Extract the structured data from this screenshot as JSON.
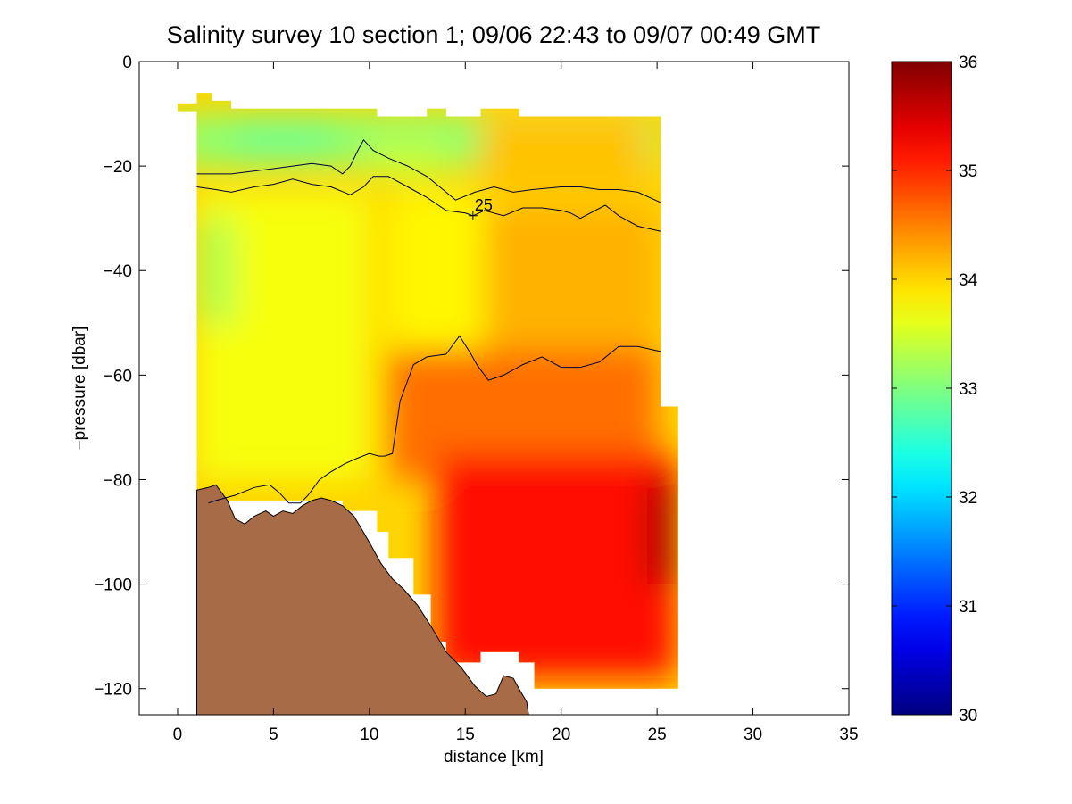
{
  "chart_data": {
    "type": "heatmap",
    "title": "Salinity survey 10 section 1; 09/06 22:43 to 09/07 00:49 GMT",
    "xlabel": "distance [km]",
    "ylabel": "−pressure [dbar]",
    "xlim": [
      -2,
      35
    ],
    "ylim": [
      -125,
      0
    ],
    "xticks": [
      0,
      5,
      10,
      15,
      20,
      25,
      30,
      35
    ],
    "yticks": [
      0,
      -20,
      -40,
      -60,
      -80,
      -100,
      -120
    ],
    "xtick_labels": [
      "0",
      "5",
      "10",
      "15",
      "20",
      "25",
      "30",
      "35"
    ],
    "ytick_labels": [
      "0",
      "−20",
      "−40",
      "−60",
      "−80",
      "−100",
      "−120"
    ],
    "colorbar": {
      "range": [
        30,
        36
      ],
      "ticks": [
        30,
        31,
        32,
        33,
        34,
        35,
        36
      ],
      "tick_labels": [
        "30",
        "31",
        "32",
        "33",
        "34",
        "35",
        "36"
      ],
      "colormap": "jet"
    },
    "grid": false,
    "bottom_color": "#a86b47",
    "data_outline": [
      [
        0,
        -8
      ],
      [
        1,
        -8
      ],
      [
        1,
        -6
      ],
      [
        1.8,
        -6
      ],
      [
        1.8,
        -7.5
      ],
      [
        2.8,
        -7.5
      ],
      [
        2.8,
        -9
      ],
      [
        10.4,
        -9
      ],
      [
        10.4,
        -10.5
      ],
      [
        13,
        -10.5
      ],
      [
        13,
        -9
      ],
      [
        14,
        -9
      ],
      [
        14,
        -10.5
      ],
      [
        15.8,
        -10.5
      ],
      [
        15.8,
        -9
      ],
      [
        17.8,
        -9
      ],
      [
        17.8,
        -10.5
      ],
      [
        25.2,
        -10.5
      ],
      [
        25.2,
        -66
      ],
      [
        26.1,
        -66
      ],
      [
        26.1,
        -120
      ],
      [
        18.6,
        -120
      ],
      [
        18.6,
        -115
      ],
      [
        17.8,
        -115
      ],
      [
        17.8,
        -113
      ],
      [
        15.8,
        -113
      ],
      [
        15.8,
        -115
      ],
      [
        14,
        -115
      ],
      [
        14,
        -111
      ],
      [
        13.2,
        -111
      ],
      [
        13.2,
        -102
      ],
      [
        12.3,
        -102
      ],
      [
        12.3,
        -95
      ],
      [
        11,
        -95
      ],
      [
        11,
        -90
      ],
      [
        10.4,
        -90
      ],
      [
        10.4,
        -86
      ],
      [
        8.6,
        -86
      ],
      [
        8.6,
        -84
      ],
      [
        1,
        -84
      ],
      [
        1,
        -9.5
      ],
      [
        0,
        -9.5
      ]
    ],
    "bathymetry": [
      [
        1,
        -82
      ],
      [
        1.6,
        -81.5
      ],
      [
        2,
        -81
      ],
      [
        2.6,
        -84
      ],
      [
        3,
        -87.5
      ],
      [
        3.5,
        -88.5
      ],
      [
        4,
        -87
      ],
      [
        4.6,
        -86
      ],
      [
        5,
        -87
      ],
      [
        5.5,
        -86
      ],
      [
        6,
        -86.5
      ],
      [
        6.5,
        -85
      ],
      [
        7,
        -84
      ],
      [
        7.5,
        -83.5
      ],
      [
        8,
        -84
      ],
      [
        8.6,
        -85
      ],
      [
        9.2,
        -87
      ],
      [
        10,
        -92
      ],
      [
        10.6,
        -96
      ],
      [
        11.2,
        -99
      ],
      [
        11.8,
        -101
      ],
      [
        12.5,
        -104
      ],
      [
        13.2,
        -108
      ],
      [
        14,
        -113
      ],
      [
        14.8,
        -116
      ],
      [
        15.5,
        -119.5
      ],
      [
        16.1,
        -121.5
      ],
      [
        16.6,
        -121
      ],
      [
        17,
        -117.5
      ],
      [
        17.5,
        -118
      ],
      [
        17.8,
        -120
      ],
      [
        18.2,
        -122.5
      ],
      [
        18.3,
        -125
      ],
      [
        1,
        -125
      ]
    ],
    "contours": [
      {
        "points": [
          [
            1,
            -21.5
          ],
          [
            2.8,
            -21.5
          ],
          [
            5,
            -20.5
          ],
          [
            6,
            -20
          ],
          [
            7,
            -19.5
          ],
          [
            8,
            -20
          ],
          [
            8.6,
            -21.5
          ],
          [
            9,
            -20
          ],
          [
            9.4,
            -17
          ],
          [
            9.7,
            -15
          ],
          [
            10.2,
            -17
          ],
          [
            11,
            -18.5
          ],
          [
            12,
            -20
          ],
          [
            13,
            -22
          ],
          [
            14,
            -25
          ],
          [
            14.5,
            -26.5
          ],
          [
            15.5,
            -25
          ],
          [
            16.5,
            -24
          ],
          [
            17.5,
            -25
          ],
          [
            18.5,
            -24.5
          ],
          [
            20,
            -24
          ],
          [
            21,
            -24
          ],
          [
            22,
            -24.5
          ],
          [
            23,
            -24.5
          ],
          [
            24,
            -25
          ],
          [
            25.2,
            -27
          ]
        ]
      },
      {
        "points": [
          [
            1,
            -24
          ],
          [
            2,
            -24.5
          ],
          [
            2.8,
            -25
          ],
          [
            4,
            -24
          ],
          [
            5,
            -23.5
          ],
          [
            6,
            -22.5
          ],
          [
            7,
            -23.5
          ],
          [
            8,
            -24
          ],
          [
            9,
            -25.5
          ],
          [
            9.7,
            -24
          ],
          [
            10.2,
            -22
          ],
          [
            11,
            -22
          ],
          [
            11.5,
            -23
          ],
          [
            12,
            -24
          ],
          [
            13,
            -26
          ],
          [
            14,
            -28.5
          ],
          [
            15,
            -29
          ],
          [
            15.4,
            -29.5
          ],
          [
            16,
            -28.5
          ],
          [
            17,
            -29.5
          ],
          [
            18,
            -28
          ],
          [
            19,
            -28
          ],
          [
            20,
            -28.5
          ],
          [
            20.5,
            -29
          ],
          [
            21,
            -30
          ],
          [
            22.3,
            -27.5
          ],
          [
            23,
            -29.5
          ],
          [
            24,
            -31.5
          ],
          [
            25.2,
            -32.5
          ]
        ]
      },
      {
        "points": [
          [
            1.6,
            -84.5
          ],
          [
            2,
            -84
          ],
          [
            3,
            -83
          ],
          [
            4,
            -81.5
          ],
          [
            4.8,
            -81
          ],
          [
            5.3,
            -82.5
          ],
          [
            5.8,
            -84.5
          ],
          [
            6.4,
            -84.5
          ],
          [
            6.8,
            -83
          ],
          [
            7.4,
            -80
          ],
          [
            8,
            -78.5
          ],
          [
            8.7,
            -77
          ],
          [
            9.3,
            -76
          ],
          [
            10,
            -75
          ],
          [
            10.5,
            -75.5
          ],
          [
            10.8,
            -75.5
          ],
          [
            11.2,
            -75
          ],
          [
            11.6,
            -65
          ],
          [
            12.3,
            -58
          ],
          [
            13,
            -56.5
          ],
          [
            14,
            -56
          ],
          [
            14.7,
            -52.5
          ],
          [
            15.3,
            -56
          ],
          [
            15.6,
            -58
          ],
          [
            16.2,
            -61
          ],
          [
            17,
            -60
          ],
          [
            18,
            -58
          ],
          [
            19,
            -56.5
          ],
          [
            20,
            -58.5
          ],
          [
            21,
            -58.5
          ],
          [
            22,
            -57.5
          ],
          [
            23,
            -54.5
          ],
          [
            24,
            -54.5
          ],
          [
            25.2,
            -55.5
          ]
        ]
      }
    ],
    "contour_labels": [
      {
        "text": "25",
        "x": 15.4,
        "y": -29.5
      }
    ],
    "salinity_field": [
      {
        "x": [
          0,
          25
        ],
        "y": [
          -10,
          -20
        ],
        "value": 33.1
      },
      {
        "x": [
          3,
          8
        ],
        "y": [
          -12,
          -18
        ],
        "value": 32.9
      },
      {
        "x": [
          10,
          14
        ],
        "y": [
          -15,
          -22
        ],
        "value": 33.4
      },
      {
        "x": [
          15.8,
          24.5
        ],
        "y": [
          -10.5,
          -25
        ],
        "value": 34.1
      },
      {
        "x": [
          1,
          10
        ],
        "y": [
          -25,
          -80
        ],
        "value": 33.7
      },
      {
        "x": [
          1,
          3
        ],
        "y": [
          -30,
          -50
        ],
        "value": 33.3
      },
      {
        "x": [
          11,
          16
        ],
        "y": [
          -25,
          -55
        ],
        "value": 33.8
      },
      {
        "x": [
          16,
          25
        ],
        "y": [
          -28,
          -55
        ],
        "value": 34.2
      },
      {
        "x": [
          11,
          25
        ],
        "y": [
          -55,
          -80
        ],
        "value": 34.6
      },
      {
        "x": [
          13.5,
          26
        ],
        "y": [
          -75,
          -118
        ],
        "value": 35.2
      },
      {
        "x": [
          24.5,
          26
        ],
        "y": [
          -80,
          -100
        ],
        "value": 35.8
      }
    ]
  }
}
